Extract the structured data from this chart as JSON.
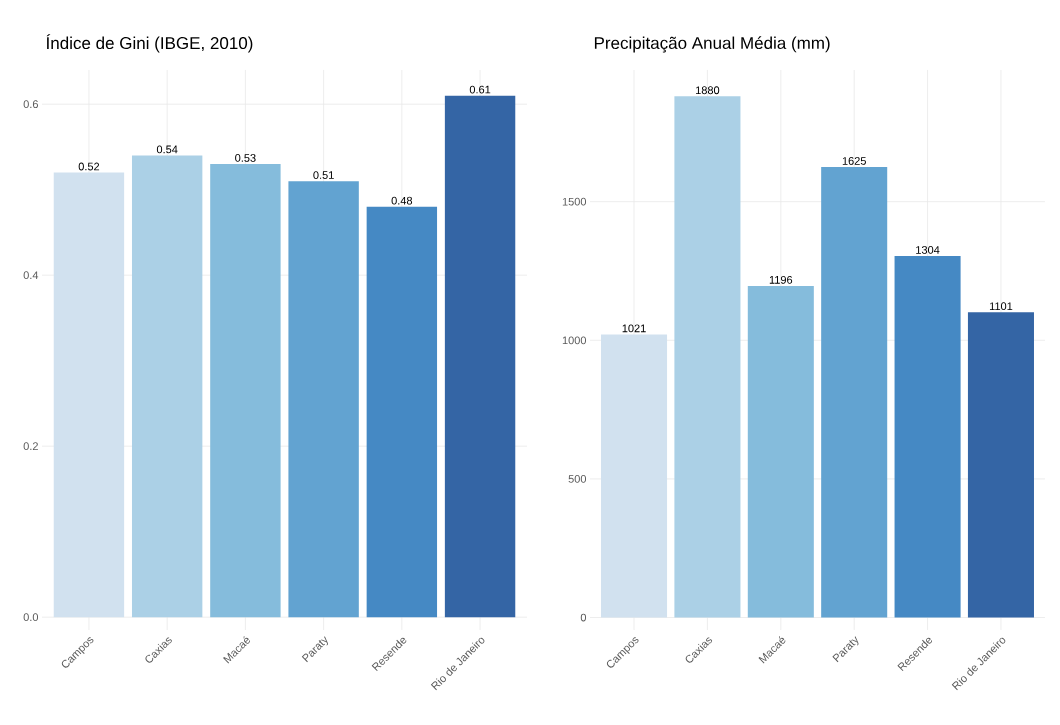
{
  "chart_data": [
    {
      "type": "bar",
      "title": "Índice de Gini (IBGE, 2010)",
      "categories": [
        "Campos",
        "Caxias",
        "Macaé",
        "Paraty",
        "Resende",
        "Rio de Janeiro"
      ],
      "values": [
        0.52,
        0.54,
        0.53,
        0.51,
        0.48,
        0.61
      ],
      "colors": [
        "#d1e1ef",
        "#abd0e6",
        "#85bcdc",
        "#62a3d1",
        "#4589c4",
        "#3465a5"
      ],
      "ylim": [
        -0.015,
        0.64
      ],
      "yticks": [
        {
          "value": 0,
          "label": "0.0"
        },
        0.2,
        0.4,
        0.6
      ],
      "grid": true,
      "data_labels": true
    },
    {
      "type": "bar",
      "title": "Precipitação Anual Média (mm)",
      "categories": [
        "Campos",
        "Caxias",
        "Macaé",
        "Paraty",
        "Resende",
        "Rio de Janeiro"
      ],
      "values": [
        1021,
        1880,
        1196,
        1625,
        1304,
        1101
      ],
      "colors": [
        "#d1e1ef",
        "#abd0e6",
        "#85bcdc",
        "#62a3d1",
        "#4589c4",
        "#3465a5"
      ],
      "ylim": [
        -45,
        1975
      ],
      "yticks": [
        0,
        500,
        1000,
        1500
      ],
      "grid": true,
      "data_labels": true
    }
  ]
}
